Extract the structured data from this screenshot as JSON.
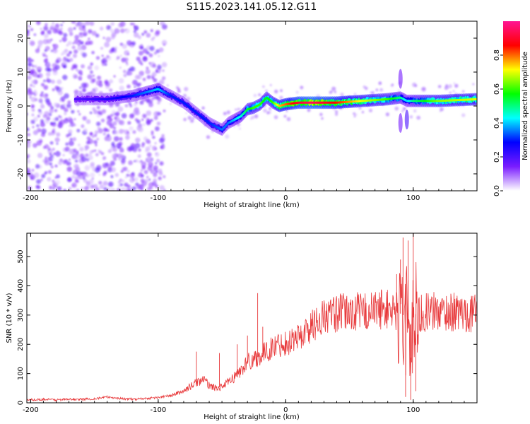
{
  "figure_title": "S115.2023.141.05.12.G11",
  "chart_data": [
    {
      "type": "heatmap",
      "name": "spectrogram",
      "title": "S115.2023.141.05.12.G11",
      "xlabel": "Height of straight line (km)",
      "ylabel": "Frequency (Hz)",
      "xlim": [
        -203,
        150
      ],
      "ylim": [
        -25,
        25
      ],
      "xticks": [
        -200,
        -100,
        0,
        100
      ],
      "yticks": [
        -20,
        -10,
        0,
        10,
        20
      ],
      "colorbar": {
        "label": "Normalized spectral amplitude",
        "range": [
          0,
          1
        ],
        "ticks": [
          "0.0",
          "0.2",
          "0.4",
          "0.6",
          "0.8"
        ],
        "colormap": [
          "#ffffff",
          "#7a1cff",
          "#0000ff",
          "#00ffff",
          "#00ff00",
          "#ffff00",
          "#ff0000",
          "#ff1493"
        ]
      },
      "ridge": {
        "description_values": "dominant frequency (Hz) vs height (km)",
        "x": [
          -160,
          -140,
          -120,
          -110,
          -100,
          -90,
          -80,
          -70,
          -60,
          -50,
          -45,
          -40,
          -35,
          -30,
          -25,
          -20,
          -15,
          -10,
          -5,
          0,
          10,
          20,
          40,
          60,
          80,
          90,
          95,
          100,
          120,
          150
        ],
        "y": [
          2,
          2,
          3,
          4,
          5,
          3,
          1,
          -2,
          -5,
          -7,
          -5,
          -4,
          -3,
          -1,
          -0.5,
          0.5,
          2.5,
          1,
          0,
          0.5,
          1,
          1,
          1,
          1.5,
          2,
          2.5,
          1.5,
          1.5,
          1.5,
          2
        ],
        "amplitude": [
          0.2,
          0.25,
          0.3,
          0.35,
          0.4,
          0.3,
          0.3,
          0.3,
          0.3,
          0.35,
          0.35,
          0.4,
          0.45,
          0.55,
          0.6,
          0.6,
          0.55,
          0.6,
          0.75,
          0.8,
          0.9,
          0.95,
          0.85,
          0.7,
          0.6,
          0.5,
          0.4,
          0.5,
          0.65,
          0.7
        ]
      }
    },
    {
      "type": "line",
      "name": "snr",
      "xlabel": "Height of straight line (km)",
      "ylabel": "SNR (10 * v/v)",
      "xlim": [
        -203,
        150
      ],
      "ylim": [
        0,
        580
      ],
      "xticks": [
        -200,
        -100,
        0,
        100
      ],
      "yticks": [
        0,
        100,
        200,
        300,
        400,
        500
      ],
      "color": "#e8393b",
      "series": [
        {
          "x": [
            -203,
            -190,
            -180,
            -170,
            -160,
            -150,
            -140,
            -130,
            -120,
            -110,
            -100,
            -90,
            -80,
            -75,
            -70,
            -65,
            -60,
            -55,
            -50,
            -45,
            -40,
            -35,
            -30,
            -25,
            -20,
            -15,
            -10,
            -5,
            0,
            5,
            10,
            15,
            20,
            25,
            30,
            40,
            50,
            60,
            70,
            75,
            80,
            85,
            88,
            92,
            95,
            98,
            100,
            103,
            110,
            120,
            130,
            140,
            150
          ],
          "y": [
            10,
            12,
            10,
            12,
            12,
            14,
            20,
            15,
            12,
            15,
            18,
            25,
            40,
            55,
            70,
            80,
            60,
            50,
            55,
            70,
            90,
            110,
            140,
            150,
            160,
            175,
            190,
            200,
            205,
            215,
            225,
            240,
            260,
            280,
            295,
            305,
            310,
            312,
            315,
            322,
            320,
            318,
            310,
            300,
            250,
            270,
            300,
            305,
            310,
            312,
            310,
            308,
            305
          ]
        }
      ],
      "spikes": {
        "x": [
          -70,
          -52,
          -38,
          -30,
          -22,
          -18,
          87,
          90,
          92,
          94,
          96,
          98,
          100,
          102
        ],
        "y": [
          175,
          170,
          200,
          230,
          375,
          260,
          440,
          490,
          565,
          20,
          555,
          10,
          580,
          40
        ]
      }
    }
  ]
}
